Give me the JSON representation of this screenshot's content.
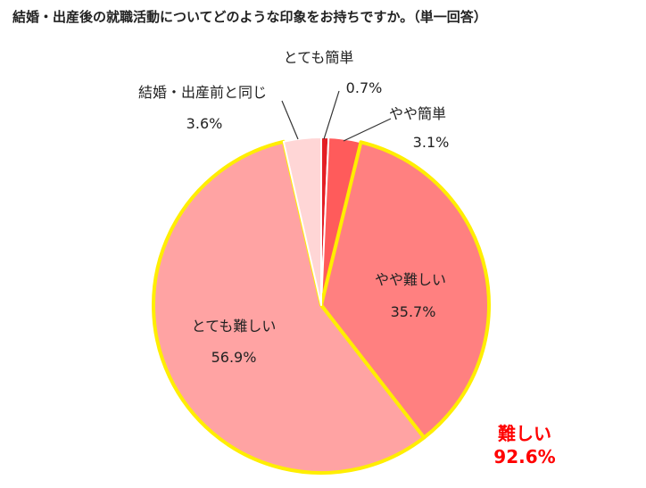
{
  "chart_data": {
    "type": "pie",
    "title": "結婚・出産後の就職活動についてどのような印象をお持ちですか。（単一回答）",
    "slices": [
      {
        "name": "とても簡単",
        "value": 0.7,
        "value_label": "0.7%",
        "color": "#e31e24"
      },
      {
        "name": "やや簡単",
        "value": 3.1,
        "value_label": "3.1%",
        "color": "#ff5b5b"
      },
      {
        "name": "やや難しい",
        "value": 35.7,
        "value_label": "35.7%",
        "color": "#ff8080"
      },
      {
        "name": "とても難しい",
        "value": 56.9,
        "value_label": "56.9%",
        "color": "#ffa3a3"
      },
      {
        "name": "結婚・出産前と同じ",
        "value": 3.6,
        "value_label": "3.6%",
        "color": "#ffd6d6"
      }
    ],
    "start_angle_deg": 0,
    "direction": "clockwise",
    "highlight": {
      "slices": [
        "やや難しい",
        "とても難しい"
      ],
      "outline_color": "#ffee00"
    },
    "annotation": {
      "label": "難しい",
      "value_label": "92.6%",
      "color": "#ff0000"
    },
    "legend": "none"
  }
}
